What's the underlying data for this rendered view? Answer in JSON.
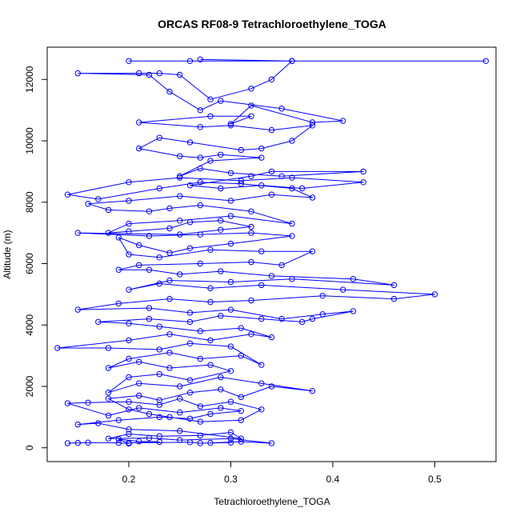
{
  "chart_data": {
    "type": "line",
    "title": "ORCAS RF08-9 Tetrachloroethylene_TOGA",
    "xlabel": "Tetrachloroethylene_TOGA",
    "ylabel": "Altitude (m)",
    "xlim": [
      0.12,
      0.56
    ],
    "ylim": [
      -450,
      13050
    ],
    "xticks": [
      0.2,
      0.3,
      0.4,
      0.5
    ],
    "xtick_labels": [
      "0.2",
      "0.3",
      "0.4",
      "0.5"
    ],
    "yticks": [
      0,
      2000,
      4000,
      6000,
      8000,
      10000,
      12000
    ],
    "ytick_labels": [
      "0",
      "2000",
      "4000",
      "6000",
      "8000",
      "10000",
      "12000"
    ],
    "grid": false,
    "color": "#0000ff",
    "series": [
      {
        "points": [
          [
            0.14,
            150
          ],
          [
            0.15,
            160
          ],
          [
            0.16,
            170
          ],
          [
            0.19,
            160
          ],
          [
            0.2,
            140
          ],
          [
            0.19,
            280
          ],
          [
            0.21,
            210
          ],
          [
            0.23,
            190
          ],
          [
            0.2,
            160
          ],
          [
            0.26,
            180
          ],
          [
            0.27,
            150
          ],
          [
            0.3,
            170
          ],
          [
            0.28,
            160
          ],
          [
            0.31,
            200
          ],
          [
            0.34,
            150
          ],
          [
            0.3,
            300
          ],
          [
            0.25,
            250
          ],
          [
            0.22,
            320
          ],
          [
            0.18,
            300
          ],
          [
            0.2,
            450
          ],
          [
            0.23,
            380
          ],
          [
            0.27,
            400
          ],
          [
            0.3,
            500
          ],
          [
            0.31,
            300
          ],
          [
            0.25,
            550
          ],
          [
            0.2,
            600
          ],
          [
            0.17,
            800
          ],
          [
            0.15,
            760
          ],
          [
            0.19,
            900
          ],
          [
            0.23,
            1000
          ],
          [
            0.26,
            950
          ],
          [
            0.28,
            1100
          ],
          [
            0.31,
            1200
          ],
          [
            0.29,
            1300
          ],
          [
            0.25,
            1150
          ],
          [
            0.21,
            1300
          ],
          [
            0.18,
            1050
          ],
          [
            0.14,
            1450
          ],
          [
            0.16,
            1470
          ],
          [
            0.2,
            1500
          ],
          [
            0.23,
            1400
          ],
          [
            0.25,
            1600
          ],
          [
            0.27,
            1350
          ],
          [
            0.3,
            1500
          ],
          [
            0.33,
            1250
          ],
          [
            0.31,
            900
          ],
          [
            0.27,
            850
          ],
          [
            0.24,
            1000
          ],
          [
            0.22,
            1100
          ],
          [
            0.2,
            1250
          ],
          [
            0.18,
            1600
          ],
          [
            0.21,
            1700
          ],
          [
            0.23,
            1550
          ],
          [
            0.26,
            1800
          ],
          [
            0.29,
            1900
          ],
          [
            0.31,
            1650
          ],
          [
            0.34,
            2000
          ],
          [
            0.38,
            1850
          ],
          [
            0.33,
            2100
          ],
          [
            0.29,
            2300
          ],
          [
            0.25,
            2000
          ],
          [
            0.21,
            2100
          ],
          [
            0.18,
            1800
          ],
          [
            0.2,
            2300
          ],
          [
            0.23,
            2400
          ],
          [
            0.26,
            2200
          ],
          [
            0.3,
            2500
          ],
          [
            0.28,
            2700
          ],
          [
            0.24,
            2600
          ],
          [
            0.21,
            2800
          ],
          [
            0.18,
            2600
          ],
          [
            0.2,
            2900
          ],
          [
            0.24,
            3100
          ],
          [
            0.27,
            2900
          ],
          [
            0.31,
            3000
          ],
          [
            0.33,
            2700
          ],
          [
            0.3,
            3300
          ],
          [
            0.26,
            3400
          ],
          [
            0.23,
            3200
          ],
          [
            0.18,
            3250
          ],
          [
            0.13,
            3250
          ],
          [
            0.2,
            3500
          ],
          [
            0.24,
            3700
          ],
          [
            0.28,
            3500
          ],
          [
            0.32,
            3700
          ],
          [
            0.34,
            3600
          ],
          [
            0.31,
            3900
          ],
          [
            0.27,
            3800
          ],
          [
            0.23,
            3950
          ],
          [
            0.2,
            4050
          ],
          [
            0.17,
            4100
          ],
          [
            0.22,
            4200
          ],
          [
            0.26,
            4100
          ],
          [
            0.29,
            4300
          ],
          [
            0.33,
            4200
          ],
          [
            0.37,
            4100
          ],
          [
            0.38,
            4200
          ],
          [
            0.42,
            4450
          ],
          [
            0.39,
            4350
          ],
          [
            0.35,
            4200
          ],
          [
            0.3,
            4500
          ],
          [
            0.26,
            4400
          ],
          [
            0.22,
            4550
          ],
          [
            0.15,
            4500
          ],
          [
            0.19,
            4700
          ],
          [
            0.24,
            4850
          ],
          [
            0.28,
            4750
          ],
          [
            0.32,
            4800
          ],
          [
            0.39,
            4950
          ],
          [
            0.46,
            4850
          ],
          [
            0.5,
            5000
          ],
          [
            0.41,
            5150
          ],
          [
            0.33,
            5300
          ],
          [
            0.28,
            5200
          ],
          [
            0.23,
            5350
          ],
          [
            0.2,
            5150
          ],
          [
            0.24,
            5450
          ],
          [
            0.3,
            5400
          ],
          [
            0.36,
            5500
          ],
          [
            0.46,
            5300
          ],
          [
            0.42,
            5500
          ],
          [
            0.34,
            5600
          ],
          [
            0.29,
            5750
          ],
          [
            0.25,
            5650
          ],
          [
            0.22,
            5800
          ],
          [
            0.19,
            5800
          ],
          [
            0.21,
            5950
          ],
          [
            0.27,
            6000
          ],
          [
            0.32,
            6050
          ],
          [
            0.35,
            5950
          ],
          [
            0.38,
            6400
          ],
          [
            0.33,
            6400
          ],
          [
            0.28,
            6450
          ],
          [
            0.23,
            6200
          ],
          [
            0.2,
            6300
          ],
          [
            0.19,
            6850
          ],
          [
            0.21,
            6600
          ],
          [
            0.24,
            6350
          ],
          [
            0.26,
            6500
          ],
          [
            0.3,
            6650
          ],
          [
            0.36,
            6900
          ],
          [
            0.32,
            7000
          ],
          [
            0.27,
            6950
          ],
          [
            0.22,
            6900
          ],
          [
            0.15,
            7000
          ],
          [
            0.25,
            6950
          ],
          [
            0.29,
            7100
          ],
          [
            0.32,
            7200
          ],
          [
            0.29,
            7400
          ],
          [
            0.26,
            7350
          ],
          [
            0.24,
            7150
          ],
          [
            0.2,
            7050
          ],
          [
            0.18,
            7000
          ],
          [
            0.2,
            7300
          ],
          [
            0.25,
            7400
          ],
          [
            0.3,
            7550
          ],
          [
            0.36,
            7300
          ],
          [
            0.32,
            7700
          ],
          [
            0.27,
            7900
          ],
          [
            0.24,
            7800
          ],
          [
            0.22,
            7700
          ],
          [
            0.18,
            7750
          ],
          [
            0.16,
            7950
          ],
          [
            0.2,
            8050
          ],
          [
            0.25,
            8200
          ],
          [
            0.3,
            8050
          ],
          [
            0.34,
            8250
          ],
          [
            0.38,
            8150
          ],
          [
            0.36,
            8450
          ],
          [
            0.31,
            8600
          ],
          [
            0.27,
            8650
          ],
          [
            0.23,
            8450
          ],
          [
            0.17,
            8100
          ],
          [
            0.14,
            8250
          ],
          [
            0.2,
            8650
          ],
          [
            0.25,
            8800
          ],
          [
            0.31,
            8700
          ],
          [
            0.36,
            8800
          ],
          [
            0.43,
            8650
          ],
          [
            0.37,
            8450
          ],
          [
            0.33,
            8550
          ],
          [
            0.29,
            8450
          ],
          [
            0.26,
            8550
          ],
          [
            0.32,
            8850
          ],
          [
            0.34,
            9000
          ],
          [
            0.43,
            9000
          ],
          [
            0.35,
            8850
          ],
          [
            0.3,
            8950
          ],
          [
            0.27,
            9100
          ],
          [
            0.25,
            8850
          ],
          [
            0.28,
            9350
          ],
          [
            0.33,
            9450
          ],
          [
            0.29,
            9550
          ],
          [
            0.27,
            9450
          ],
          [
            0.25,
            9500
          ],
          [
            0.21,
            9750
          ],
          [
            0.23,
            10100
          ],
          [
            0.26,
            9950
          ],
          [
            0.31,
            9700
          ],
          [
            0.33,
            9750
          ],
          [
            0.36,
            10000
          ],
          [
            0.38,
            10500
          ],
          [
            0.34,
            10350
          ],
          [
            0.3,
            10500
          ],
          [
            0.27,
            10450
          ],
          [
            0.21,
            10600
          ],
          [
            0.28,
            10800
          ],
          [
            0.32,
            10800
          ],
          [
            0.3,
            10550
          ],
          [
            0.32,
            11150
          ],
          [
            0.38,
            10600
          ],
          [
            0.41,
            10650
          ],
          [
            0.35,
            11050
          ],
          [
            0.29,
            11300
          ],
          [
            0.27,
            11000
          ],
          [
            0.24,
            11600
          ],
          [
            0.22,
            12150
          ],
          [
            0.15,
            12200
          ],
          [
            0.21,
            12200
          ],
          [
            0.23,
            12200
          ],
          [
            0.25,
            12150
          ],
          [
            0.28,
            11350
          ],
          [
            0.32,
            11700
          ],
          [
            0.34,
            12000
          ],
          [
            0.36,
            12600
          ],
          [
            0.2,
            12600
          ],
          [
            0.26,
            12600
          ],
          [
            0.55,
            12600
          ],
          [
            0.36,
            12600
          ],
          [
            0.27,
            12650
          ]
        ]
      }
    ]
  }
}
